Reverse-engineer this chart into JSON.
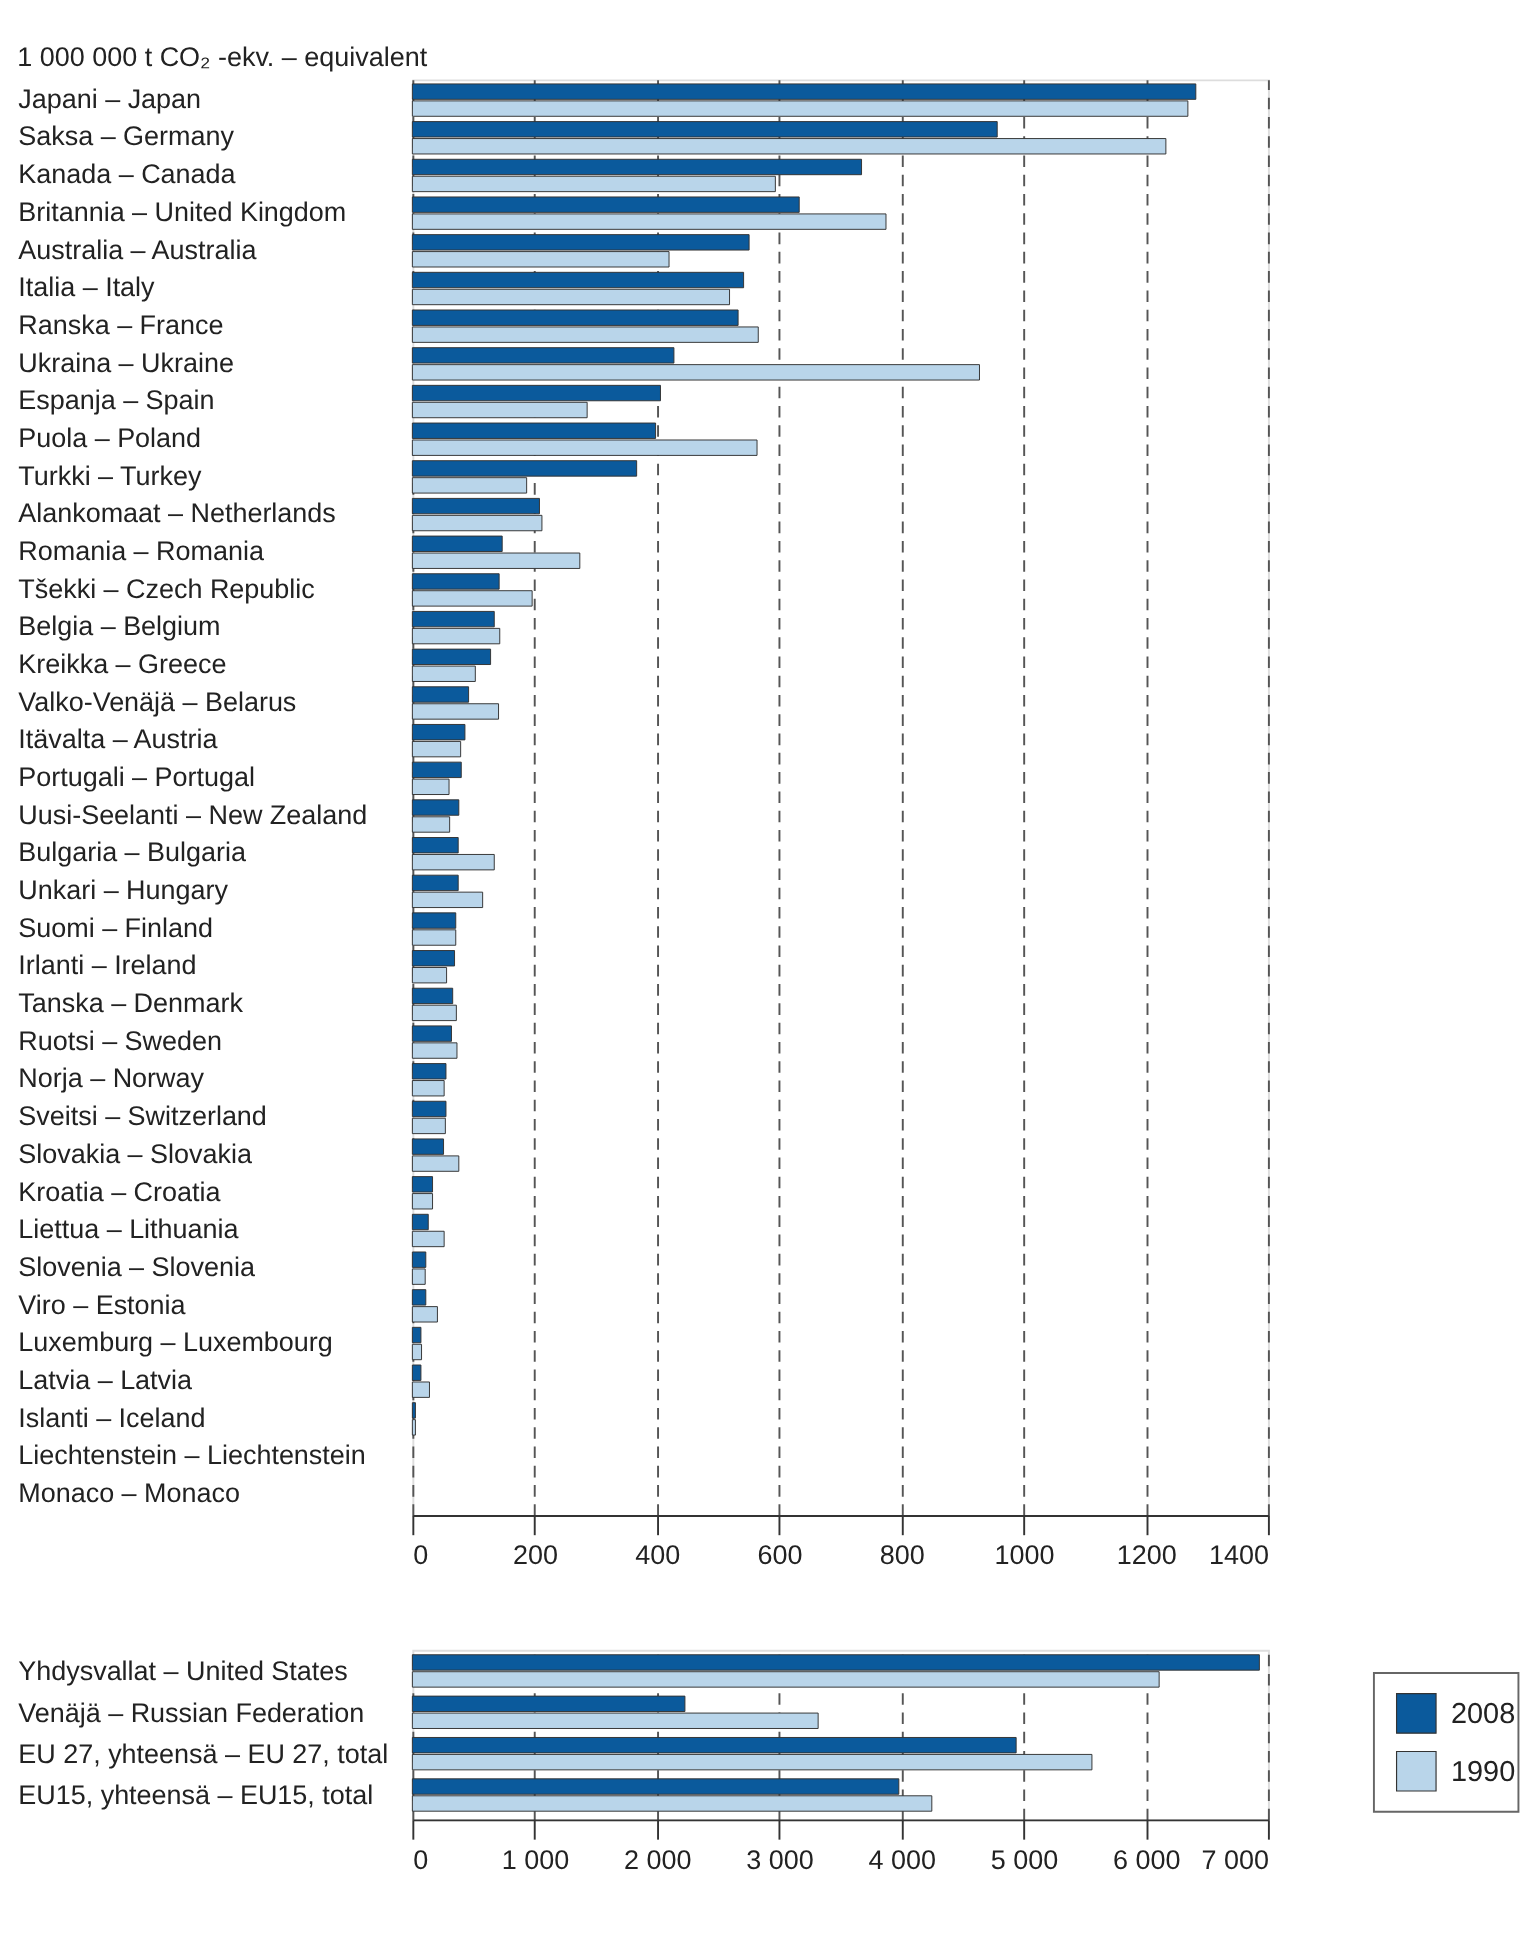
{
  "chart_data": [
    {
      "type": "bar",
      "orientation": "horizontal",
      "title": "1 000 000 t CO₂ -ekv. – equivalent",
      "categories": [
        "Japani – Japan",
        "Saksa – Germany",
        "Kanada – Canada",
        "Britannia – United Kingdom",
        "Australia – Australia",
        "Italia – Italy",
        "Ranska – France",
        "Ukraina – Ukraine",
        "Espanja – Spain",
        "Puola – Poland",
        "Turkki – Turkey",
        "Alankomaat – Netherlands",
        "Romania – Romania",
        "Tšekki – Czech Republic",
        "Belgia – Belgium",
        "Kreikka – Greece",
        "Valko-Venäjä – Belarus",
        "Itävalta – Austria",
        "Portugali – Portugal",
        "Uusi-Seelanti – New Zealand",
        "Bulgaria – Bulgaria",
        "Unkari – Hungary",
        "Suomi – Finland",
        "Irlanti – Ireland",
        "Tanska – Denmark",
        "Ruotsi – Sweden",
        "Norja – Norway",
        "Sveitsi – Switzerland",
        "Slovakia – Slovakia",
        "Kroatia – Croatia",
        "Liettua – Lithuania",
        "Slovenia – Slovenia",
        "Viro – Estonia",
        "Luxemburg – Luxembourg",
        "Latvia – Latvia",
        "Islanti – Iceland",
        "Liechtenstein – Liechtenstein",
        "Monaco – Monaco"
      ],
      "series": [
        {
          "name": "2008",
          "color": "#0b5a9c",
          "values": [
            1282,
            957,
            735,
            633,
            551,
            542,
            533,
            428,
            406,
            398,
            367,
            208,
            147,
            142,
            134,
            128,
            92,
            86,
            80,
            76,
            75,
            75,
            71,
            69,
            66,
            64,
            55,
            55,
            51,
            33,
            26,
            22,
            22,
            14,
            14,
            5,
            null,
            null
          ]
        },
        {
          "name": "1990",
          "color": "#b9d5ea",
          "values": [
            1269,
            1233,
            594,
            775,
            420,
            519,
            566,
            928,
            286,
            564,
            187,
            212,
            274,
            196,
            143,
            103,
            141,
            79,
            60,
            61,
            134,
            115,
            71,
            56,
            72,
            73,
            52,
            54,
            76,
            33,
            52,
            21,
            41,
            15,
            28,
            5,
            null,
            null
          ]
        }
      ],
      "xlim": [
        0,
        1400
      ],
      "xticks": [
        0,
        200,
        400,
        600,
        800,
        1000,
        1200,
        1400
      ],
      "grid": "x",
      "legend": "bottom right"
    },
    {
      "type": "bar",
      "orientation": "horizontal",
      "categories": [
        "Yhdysvallat – United States",
        "Venäjä – Russian Federation",
        "EU 27, yhteensä – EU 27, total",
        "EU15, yhteensä – EU15, total"
      ],
      "series": [
        {
          "name": "2008",
          "color": "#0b5a9c",
          "values": [
            6930,
            2230,
            4940,
            3980
          ]
        },
        {
          "name": "1990",
          "color": "#b9d5ea",
          "values": [
            6110,
            3320,
            5560,
            4250
          ]
        }
      ],
      "xlim": [
        0,
        7000
      ],
      "xticks": [
        {
          "value": 0,
          "label": "0"
        },
        {
          "value": 1000,
          "label": "1 000"
        },
        {
          "value": 2000,
          "label": "2 000"
        },
        {
          "value": 3000,
          "label": "3 000"
        },
        {
          "value": 4000,
          "label": "4 000"
        },
        {
          "value": 5000,
          "label": "5 000"
        },
        {
          "value": 6000,
          "label": "6 000"
        },
        {
          "value": 7000,
          "label": "7 000"
        }
      ],
      "grid": "x"
    }
  ]
}
